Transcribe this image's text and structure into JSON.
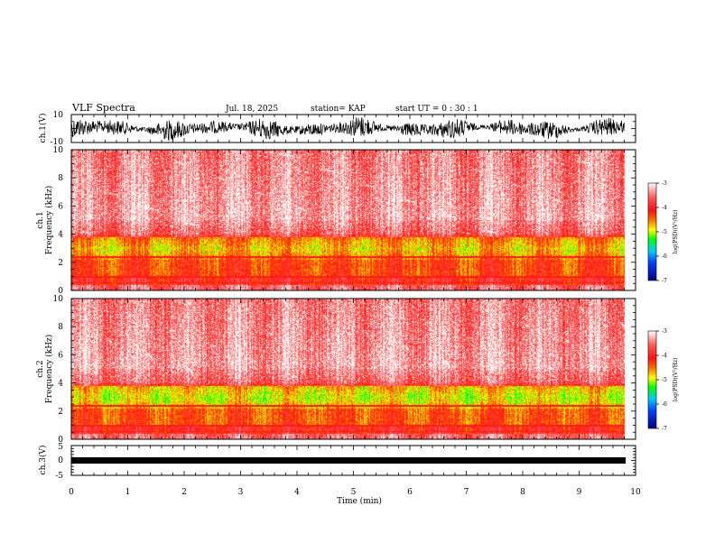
{
  "header": {
    "title": "VLF Spectra",
    "date": "Jul. 18, 2025",
    "station": "station= KAP",
    "start": "start  UT =   0  : 30 : 1"
  },
  "chart_data": [
    {
      "type": "line",
      "name": "ch1-waveform",
      "ylabel": "ch.1(V)",
      "ylim": [
        -10,
        10
      ],
      "yticks": [
        "10",
        "-10"
      ],
      "xlim": [
        0,
        10
      ],
      "description_color": "#000000"
    },
    {
      "type": "heatmap",
      "name": "ch1-spectrogram",
      "ylabel": "ch.1\nFrequency (kHz)",
      "ylim": [
        0,
        10
      ],
      "yticks": [
        "0",
        "2",
        "4",
        "6",
        "8",
        "10"
      ],
      "xlim": [
        0,
        9.8
      ],
      "colorbar": {
        "label": "log(PSD)(V²/Hz)",
        "range": [
          -7,
          -3
        ],
        "ticks": [
          "-3",
          "-4",
          "-5",
          "-6",
          "-7"
        ]
      }
    },
    {
      "type": "heatmap",
      "name": "ch2-spectrogram",
      "ylabel": "ch.2\nFrequency (kHz)",
      "ylim": [
        0,
        10
      ],
      "yticks": [
        "0",
        "2",
        "4",
        "6",
        "8",
        "10"
      ],
      "xlim": [
        0,
        9.8
      ],
      "colorbar": {
        "label": "log(PSD)(V²/Hz)",
        "range": [
          -7,
          -3
        ],
        "ticks": [
          "-3",
          "-4",
          "-5",
          "-6",
          "-7"
        ]
      }
    },
    {
      "type": "line",
      "name": "ch3-waveform",
      "ylabel": "ch.3(V)",
      "ylim": [
        -5,
        5
      ],
      "yticks": [
        "5",
        "0",
        "-5"
      ],
      "xlim": [
        0,
        10
      ]
    }
  ],
  "xaxis": {
    "label": "Time (min)",
    "ticks": [
      "0",
      "1",
      "2",
      "3",
      "4",
      "5",
      "6",
      "7",
      "8",
      "9",
      "10"
    ]
  },
  "labels": {
    "ch1": "ch.1(V)",
    "ch1freq_a": "ch.1",
    "ch1freq_b": "Frequency (kHz)",
    "ch2freq_a": "ch.2",
    "ch2freq_b": "Frequency (kHz)",
    "ch3": "ch.3(V)",
    "cb": "log(PSD)(V²/Hz)"
  }
}
